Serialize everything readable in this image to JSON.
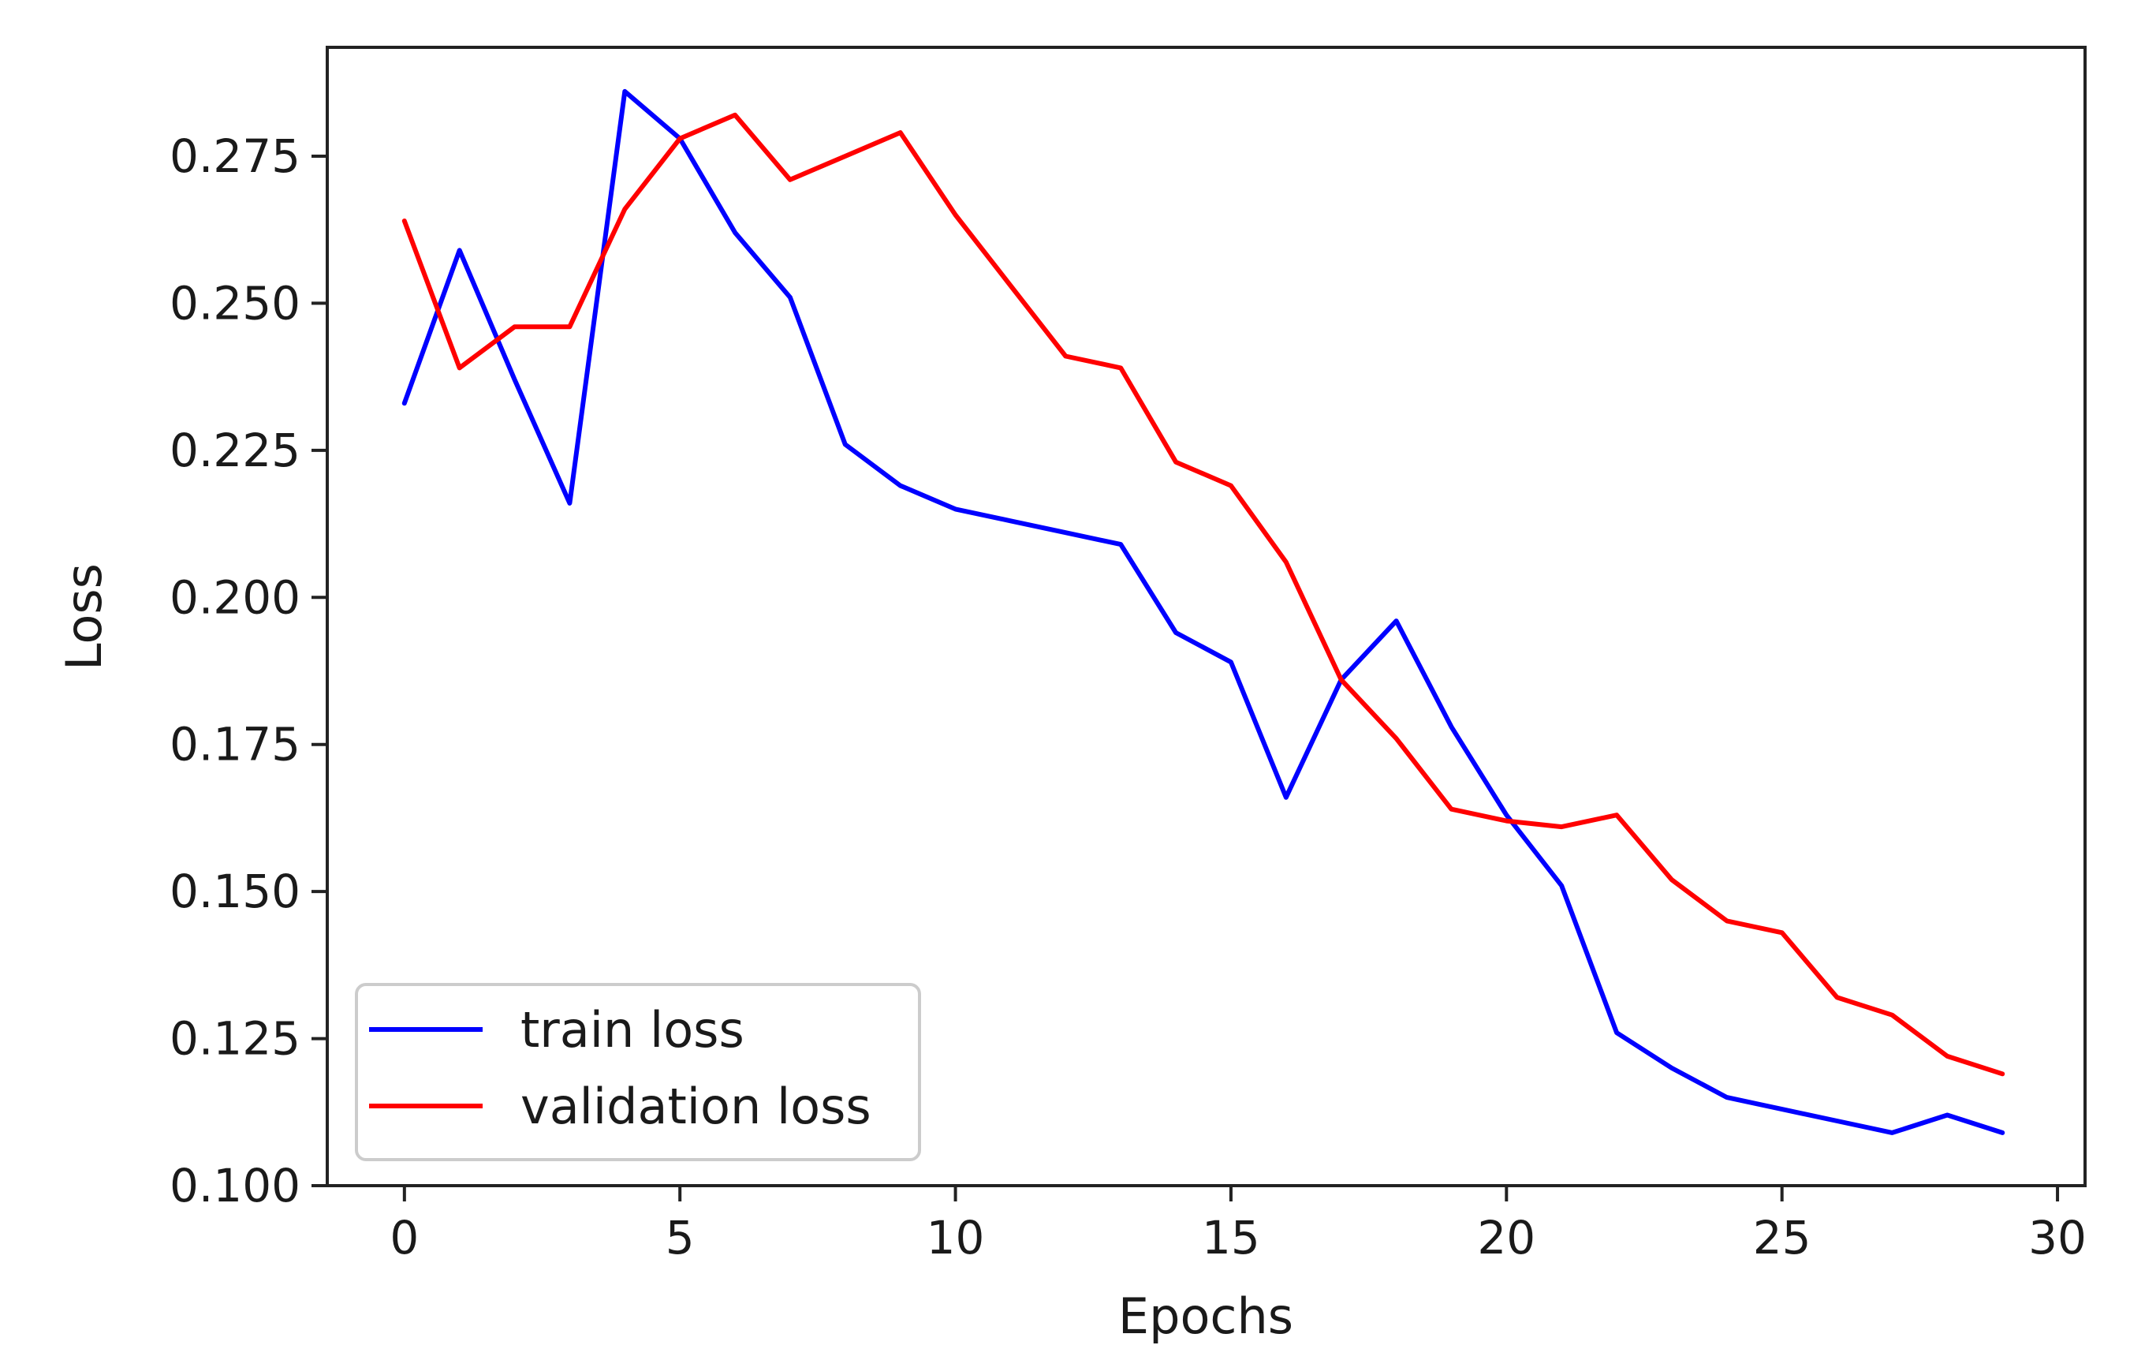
{
  "chart_data": {
    "type": "line",
    "title": "",
    "xlabel": "Epochs",
    "ylabel": "Loss",
    "xlim": [
      -1.4,
      30.5
    ],
    "ylim": [
      0.1,
      0.2935
    ],
    "xticks": [
      0,
      5,
      10,
      15,
      20,
      25,
      30
    ],
    "xtick_labels": [
      "0",
      "5",
      "10",
      "15",
      "20",
      "25",
      "30"
    ],
    "yticks": [
      0.1,
      0.125,
      0.15,
      0.175,
      0.2,
      0.225,
      0.25,
      0.275
    ],
    "ytick_labels": [
      "0.100",
      "0.125",
      "0.150",
      "0.175",
      "0.200",
      "0.225",
      "0.250",
      "0.275"
    ],
    "grid": false,
    "legend_position": "lower-left",
    "x": [
      0,
      1,
      2,
      3,
      4,
      5,
      6,
      7,
      8,
      9,
      10,
      11,
      12,
      13,
      14,
      15,
      16,
      17,
      18,
      19,
      20,
      21,
      22,
      23,
      24,
      25,
      26,
      27,
      28,
      29
    ],
    "series": [
      {
        "name": "train loss",
        "color": "#0000ff",
        "values": [
          0.233,
          0.259,
          0.237,
          0.216,
          0.286,
          0.278,
          0.262,
          0.251,
          0.226,
          0.219,
          0.215,
          0.213,
          0.211,
          0.209,
          0.194,
          0.189,
          0.166,
          0.186,
          0.196,
          0.178,
          0.163,
          0.151,
          0.126,
          0.12,
          0.115,
          0.113,
          0.111,
          0.109,
          0.112,
          0.109
        ]
      },
      {
        "name": "validation loss",
        "color": "#ff0000",
        "values": [
          0.264,
          0.239,
          0.246,
          0.246,
          0.266,
          0.278,
          0.282,
          0.271,
          0.275,
          0.279,
          0.265,
          0.253,
          0.241,
          0.239,
          0.223,
          0.219,
          0.206,
          0.186,
          0.176,
          0.164,
          0.162,
          0.161,
          0.163,
          0.152,
          0.145,
          0.143,
          0.132,
          0.129,
          0.122,
          0.119
        ]
      }
    ]
  }
}
